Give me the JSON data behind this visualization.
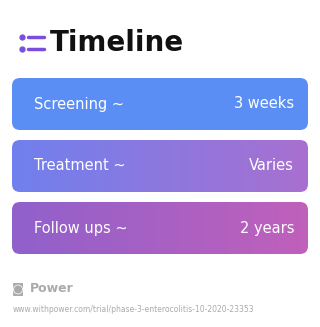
{
  "title": "Timeline",
  "title_fontsize": 20,
  "title_color": "#111111",
  "icon_color": "#7c4ddd",
  "background_color": "#ffffff",
  "rows": [
    {
      "label": "Screening ~",
      "value": "3 weeks",
      "color_left": "#5b8ef5",
      "color_right": "#5b8ef5"
    },
    {
      "label": "Treatment ~",
      "value": "Varies",
      "color_left": "#7080ee",
      "color_right": "#a870d0"
    },
    {
      "label": "Follow ups ~",
      "value": "2 years",
      "color_left": "#9060cc",
      "color_right": "#c060bb"
    }
  ],
  "row_text_color": "#ffffff",
  "row_label_fontsize": 10.5,
  "row_value_fontsize": 10.5,
  "footer_logo_color": "#aaaaaa",
  "footer_text": "Power",
  "footer_url": "www.withpower.com/trial/phase-3-enterocolitis-10-2020-23353",
  "footer_color": "#aaaaaa",
  "footer_fontsize": 5.5,
  "footer_power_fontsize": 9
}
